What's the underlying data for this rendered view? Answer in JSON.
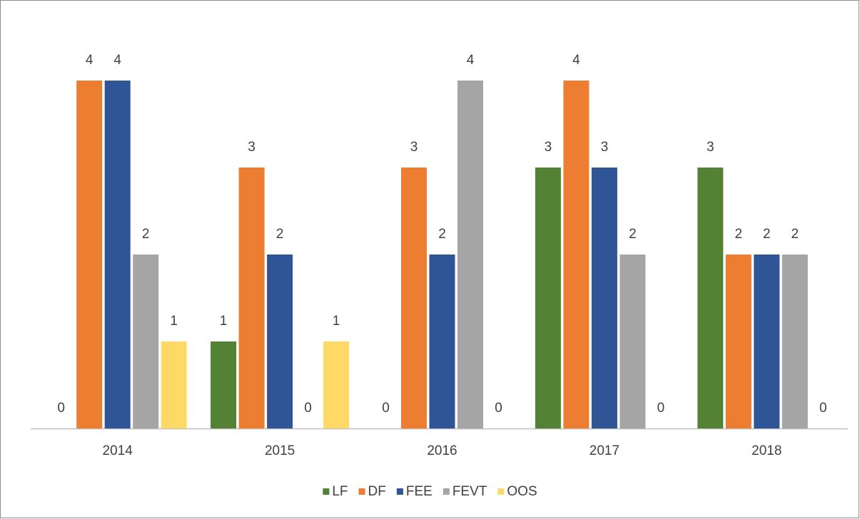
{
  "chart_data": {
    "type": "bar",
    "categories": [
      "2014",
      "2015",
      "2016",
      "2017",
      "2018"
    ],
    "series": [
      {
        "name": "LF",
        "color": "#548235",
        "values": [
          0,
          1,
          0,
          3,
          3
        ]
      },
      {
        "name": "DF",
        "color": "#ed7d31",
        "values": [
          4,
          3,
          3,
          4,
          2
        ]
      },
      {
        "name": "FEE",
        "color": "#2f5597",
        "values": [
          4,
          2,
          2,
          3,
          2
        ]
      },
      {
        "name": "FEVT",
        "color": "#a5a5a5",
        "values": [
          2,
          0,
          4,
          2,
          2
        ]
      },
      {
        "name": "OOS",
        "color": "#ffd966",
        "values": [
          1,
          1,
          0,
          0,
          0
        ]
      }
    ],
    "ylim": [
      0,
      4
    ],
    "legend": "bottom"
  }
}
